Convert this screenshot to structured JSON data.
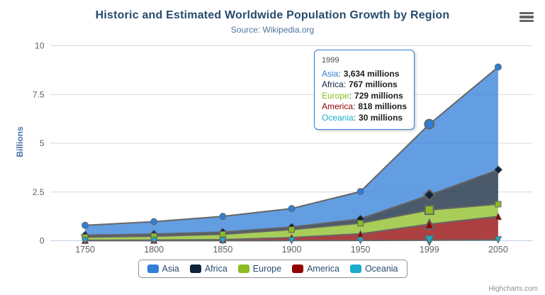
{
  "chart_data": {
    "type": "area",
    "stacking": "normal",
    "title": "Historic and Estimated Worldwide Population Growth by Region",
    "subtitle": "Source: Wikipedia.org",
    "xlabel": "",
    "ylabel": "Billions",
    "categories": [
      "1750",
      "1800",
      "1850",
      "1900",
      "1950",
      "1999",
      "2050"
    ],
    "series": [
      {
        "name": "Asia",
        "color": "#2f7ed8",
        "marker": "circle",
        "values_millions": [
          502,
          635,
          809,
          947,
          1402,
          3634,
          5268
        ]
      },
      {
        "name": "Africa",
        "color": "#0d233a",
        "marker": "diamond",
        "values_millions": [
          106,
          107,
          111,
          133,
          221,
          767,
          1766
        ]
      },
      {
        "name": "Europe",
        "color": "#8bbc21",
        "marker": "square",
        "values_millions": [
          163,
          203,
          276,
          408,
          547,
          729,
          628
        ]
      },
      {
        "name": "America",
        "color": "#910000",
        "marker": "triangle",
        "values_millions": [
          18,
          31,
          54,
          156,
          339,
          818,
          1201
        ]
      },
      {
        "name": "Oceania",
        "color": "#1aadce",
        "marker": "triangle-down",
        "values_millions": [
          2,
          2,
          2,
          6,
          13,
          30,
          46
        ]
      }
    ],
    "unit": "millions",
    "ylim": [
      0,
      10
    ],
    "yticks": [
      0,
      2.5,
      5,
      7.5,
      10
    ],
    "grid": true,
    "legend_position": "bottom",
    "line_color": "#666666",
    "fill_opacity": 0.75,
    "hovered_category_index": 5
  },
  "tooltip": {
    "header": "1999",
    "separator": ":",
    "rows": [
      {
        "label": "Asia",
        "value": "3,634 millions"
      },
      {
        "label": "Africa",
        "value": "767 millions"
      },
      {
        "label": "Europe",
        "value": "729 millions"
      },
      {
        "label": "America",
        "value": "818 millions"
      },
      {
        "label": "Oceania",
        "value": "30 millions"
      }
    ]
  },
  "credits": {
    "label": "Highcharts.com"
  }
}
